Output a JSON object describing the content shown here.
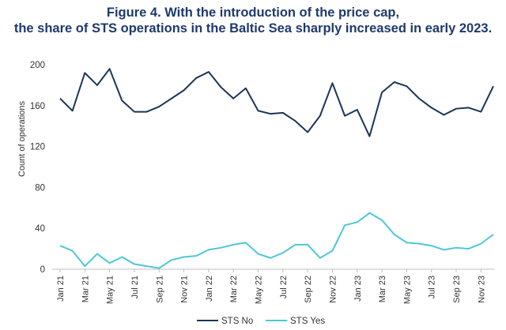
{
  "chart_data": {
    "type": "line",
    "title": "Figure 4. With the introduction of the price cap,",
    "subtitle": "the share of STS operations in the Baltic Sea sharply increased in early 2023.",
    "xlabel": "",
    "ylabel": "Count of operations",
    "ylim": [
      0,
      200
    ],
    "yticks": [
      "0",
      "40",
      "80",
      "120",
      "160",
      "200"
    ],
    "grid": false,
    "legend": "bottom",
    "x": [
      "Jan 21",
      "Feb 21",
      "Mar 21",
      "Apr 21",
      "May 21",
      "Jun 21",
      "Jul 21",
      "Aug 21",
      "Sep 21",
      "Oct 21",
      "Nov 21",
      "Dec 21",
      "Jan 22",
      "Feb 22",
      "Mar 22",
      "Apr 22",
      "May 22",
      "Jun 22",
      "Jul 22",
      "Aug 22",
      "Sep 22",
      "Oct 22",
      "Nov 22",
      "Dec 22",
      "Jan 23",
      "Feb 23",
      "Mar 23",
      "Apr 23",
      "May 23",
      "Jun 23",
      "Jul 23",
      "Aug 23",
      "Sep 23",
      "Oct 23",
      "Nov 23",
      "Dec 23"
    ],
    "xtick_labels": [
      "Jan 21",
      "Mar 21",
      "May 21",
      "Jul 21",
      "Sep 21",
      "Nov 21",
      "Jan 22",
      "Mar 22",
      "May 22",
      "Jul 22",
      "Sep 22",
      "Nov 22",
      "Jan 23",
      "Mar 23",
      "May 23",
      "Jul 23",
      "Sep 23",
      "Nov 23"
    ],
    "series": [
      {
        "name": "STS No",
        "color": "#1c3557",
        "values": [
          167,
          155,
          192,
          180,
          196,
          165,
          154,
          154,
          159,
          167,
          175,
          187,
          193,
          178,
          167,
          177,
          155,
          152,
          153,
          145,
          134,
          150,
          182,
          150,
          156,
          130,
          173,
          183,
          179,
          167,
          158,
          151,
          157,
          158,
          154,
          179
        ]
      },
      {
        "name": "STS Yes",
        "color": "#4cc7d6",
        "values": [
          23,
          18,
          3,
          15,
          6,
          12,
          5,
          3,
          1,
          9,
          12,
          13,
          19,
          21,
          24,
          26,
          15,
          11,
          16,
          24,
          24,
          11,
          18,
          43,
          46,
          55,
          48,
          34,
          26,
          25,
          23,
          19,
          21,
          20,
          25,
          34
        ]
      }
    ]
  }
}
